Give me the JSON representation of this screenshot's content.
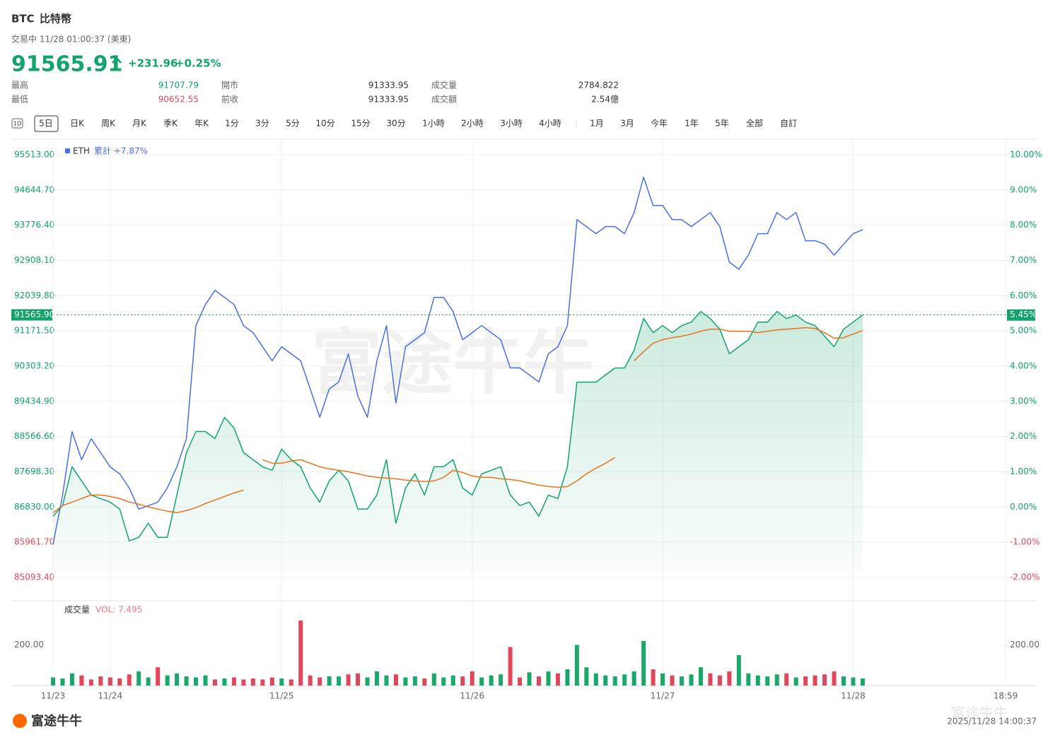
{
  "header": {
    "symbol": "BTC",
    "name": "比特幣",
    "status": "交易中 11/28 01:00:37 (美東)",
    "price": "91565.91",
    "change": "+231.96",
    "change_pct": "+0.25%",
    "stats": [
      {
        "label": "最高",
        "value": "91707.79"
      },
      {
        "label": "最低",
        "value": "90652.55"
      },
      {
        "label": "開市",
        "value": "91333.95"
      },
      {
        "label": "前收",
        "value": "91333.95"
      },
      {
        "label": "成交量",
        "value": "2784.822"
      },
      {
        "label": "成交額",
        "value": "2.54億"
      }
    ]
  },
  "tabs": {
    "icon": "1D",
    "items": [
      "5日",
      "日K",
      "周K",
      "月K",
      "季K",
      "年K",
      "1分",
      "3分",
      "5分",
      "10分",
      "15分",
      "30分",
      "1小時",
      "2小時",
      "3小時",
      "4小時"
    ],
    "ranges": [
      "1月",
      "3月",
      "今年",
      "1年",
      "5年",
      "全部",
      "自訂"
    ],
    "selected": "5日"
  },
  "footer": {
    "logo": "富途牛牛",
    "timestamp": "2025/11/28 14:00:37"
  },
  "chart_data": {
    "type": "line",
    "legend_text": "累計 +7.87%",
    "x": [
      0,
      0.05,
      0.1,
      0.15,
      0.2,
      0.25,
      0.3,
      0.35,
      0.4,
      0.45,
      0.5,
      0.55,
      0.6,
      0.65,
      0.7,
      0.75,
      0.8,
      0.85,
      0.9,
      0.95,
      1,
      1.05,
      1.1,
      1.15,
      1.2,
      1.25,
      1.3,
      1.35,
      1.4,
      1.45,
      1.5,
      1.55,
      1.6,
      1.65,
      1.7,
      1.75,
      1.8,
      1.85,
      1.9,
      1.95,
      2,
      2.05,
      2.1,
      2.15,
      2.2,
      2.25,
      2.3,
      2.35,
      2.4,
      2.45,
      2.5,
      2.55,
      2.6,
      2.65,
      2.7,
      2.75,
      2.8,
      2.85,
      2.9,
      2.95,
      3,
      3.05,
      3.1,
      3.15,
      3.2,
      3.25,
      3.3,
      3.35,
      3.4,
      3.45,
      3.5,
      3.55,
      3.6,
      3.65,
      3.7,
      3.75,
      3.8,
      3.85,
      3.9,
      3.95,
      4,
      4.05,
      4.1,
      4.15,
      4.2,
      4.25
    ],
    "xlim": [
      0,
      5
    ],
    "xticks": [
      {
        "value": 0,
        "label": "11/23"
      },
      {
        "value": 0.3,
        "label": "11/24"
      },
      {
        "value": 1.2,
        "label": "11/25"
      },
      {
        "value": 2.2,
        "label": "11/26"
      },
      {
        "value": 3.2,
        "label": "11/27"
      },
      {
        "value": 4.2,
        "label": "11/28"
      },
      {
        "value": 5,
        "label": "18:59"
      }
    ],
    "ylim": [
      84554,
      95878
    ],
    "yticks": [
      {
        "value": 95513,
        "label": "95513.00"
      },
      {
        "value": 94644.7,
        "label": "94644.70"
      },
      {
        "value": 93776.4,
        "label": "93776.40"
      },
      {
        "value": 92908.1,
        "label": "92908.10"
      },
      {
        "value": 92039.8,
        "label": "92039.80"
      },
      {
        "value": 91171.5,
        "label": "91171.50"
      },
      {
        "value": 90303.2,
        "label": "90303.20"
      },
      {
        "value": 89434.9,
        "label": "89434.90"
      },
      {
        "value": 88566.6,
        "label": "88566.60"
      },
      {
        "value": 87698.3,
        "label": "87698.30"
      },
      {
        "value": 86830,
        "label": "86830.00"
      },
      {
        "value": 85961.7,
        "label": "85961.70"
      },
      {
        "value": 85093.4,
        "label": "85093.40"
      }
    ],
    "y2lim": [
      -2.62,
      10.42
    ],
    "y2ticks": [
      {
        "value": 10,
        "label": "10.00%"
      },
      {
        "value": 9,
        "label": "9.00%"
      },
      {
        "value": 8,
        "label": "8.00%"
      },
      {
        "value": 7,
        "label": "7.00%"
      },
      {
        "value": 6,
        "label": "6.00%"
      },
      {
        "value": 5,
        "label": "5.00%"
      },
      {
        "value": 4,
        "label": "4.00%"
      },
      {
        "value": 3,
        "label": "3.00%"
      },
      {
        "value": 2,
        "label": "2.00%"
      },
      {
        "value": 1,
        "label": "1.00%"
      },
      {
        "value": 0,
        "label": "0.00%"
      },
      {
        "value": -1,
        "label": "-1.00%"
      },
      {
        "value": -2,
        "label": "-2.00%"
      }
    ],
    "grid": true,
    "series": [
      {
        "name": "ETH",
        "color": "#4a6fe3",
        "axis": "y2",
        "values": [
          -1.06,
          0.34,
          2.14,
          1.34,
          1.94,
          1.54,
          1.14,
          0.94,
          0.54,
          -0.06,
          0.04,
          0.14,
          0.54,
          1.14,
          1.94,
          5.15,
          5.75,
          6.15,
          5.95,
          5.75,
          5.15,
          4.95,
          4.55,
          4.15,
          4.55,
          4.35,
          4.15,
          3.35,
          2.55,
          3.35,
          3.55,
          4.35,
          3.15,
          2.55,
          4.15,
          5.15,
          2.95,
          4.55,
          4.75,
          4.95,
          5.95,
          5.95,
          5.55,
          4.75,
          4.95,
          5.15,
          4.95,
          4.75,
          3.95,
          3.95,
          3.75,
          3.55,
          4.35,
          4.55,
          5.15,
          8.16,
          7.96,
          7.76,
          7.96,
          7.96,
          7.76,
          8.36,
          9.36,
          8.56,
          8.56,
          8.16,
          8.16,
          7.96,
          8.16,
          8.36,
          7.96,
          6.95,
          6.75,
          7.15,
          7.76,
          7.76,
          8.36,
          8.16,
          8.36,
          7.56,
          7.56,
          7.46,
          7.15,
          7.46,
          7.76,
          7.87
        ]
      },
      {
        "color": "#13a36b",
        "area": true,
        "values": [
          86604,
          86865,
          87822,
          87474,
          87126,
          87039,
          86952,
          86778,
          85995,
          86082,
          86430,
          86082,
          86082,
          87126,
          88170,
          88692,
          88692,
          88518,
          89040,
          88779,
          88170,
          87996,
          87822,
          87735,
          88257,
          87996,
          87822,
          87300,
          86952,
          87474,
          87735,
          87474,
          86778,
          86778,
          87126,
          87996,
          86430,
          87300,
          87648,
          87126,
          87822,
          87822,
          87996,
          87300,
          87126,
          87648,
          87735,
          87822,
          87126,
          86865,
          86952,
          86604,
          87126,
          87039,
          87822,
          89910,
          89910,
          89910,
          90084,
          90258,
          90258,
          90693,
          91476,
          91128,
          91302,
          91128,
          91302,
          91389,
          91650,
          91476,
          91215,
          90606,
          90780,
          90954,
          91389,
          91389,
          91650,
          91476,
          91563,
          91389,
          91302,
          91041,
          90780,
          91215,
          91389,
          91565.9
        ]
      },
      {
        "color": "#e8731a",
        "values": [
          86691,
          86865,
          86952,
          87039,
          87126,
          87126,
          87091,
          87039,
          86952,
          86900,
          86830,
          86778,
          86726,
          86691,
          86743,
          86813,
          86917,
          87004,
          87091,
          87178,
          87248,
          null,
          87996,
          87909,
          87909,
          87961,
          87996,
          87909,
          87822,
          87770,
          87735,
          87700,
          87648,
          87596,
          87561,
          87543,
          87526,
          87491,
          87474,
          87456,
          87474,
          87561,
          87735,
          87683,
          87596,
          87561,
          87561,
          87526,
          87509,
          87474,
          87422,
          87369,
          87335,
          87317,
          87335,
          87474,
          87648,
          87787,
          87909,
          88048,
          null,
          90432,
          90658,
          90867,
          90954,
          91006,
          91041,
          91093,
          91163,
          91215,
          91215,
          91163,
          91163,
          91163,
          91128,
          91163,
          91197,
          91215,
          91232,
          91250,
          91232,
          91128,
          90989,
          91006,
          91093,
          91180
        ]
      }
    ],
    "last": {
      "value": 91565.9,
      "label": "91565.90",
      "pct": 5.45,
      "pct_label": "5.45%"
    },
    "volume": {
      "label": "成交量",
      "value_label": "VOL: 7.495",
      "up_color": "#1aa86a",
      "down_color": "#e0475a",
      "ylim": [
        0,
        400
      ],
      "yticks": [
        {
          "value": 200,
          "label": "200.00"
        }
      ],
      "values": [
        40,
        35,
        60,
        50,
        30,
        45,
        40,
        35,
        55,
        70,
        40,
        90,
        50,
        60,
        45,
        40,
        50,
        30,
        35,
        40,
        30,
        35,
        30,
        40,
        35,
        30,
        320,
        50,
        40,
        45,
        45,
        55,
        60,
        40,
        70,
        50,
        55,
        40,
        45,
        35,
        60,
        40,
        50,
        45,
        70,
        40,
        50,
        55,
        190,
        40,
        65,
        45,
        70,
        60,
        80,
        200,
        90,
        60,
        50,
        45,
        55,
        70,
        220,
        80,
        60,
        50,
        45,
        55,
        90,
        60,
        50,
        70,
        150,
        60,
        50,
        45,
        55,
        60,
        40,
        45,
        50,
        55,
        70,
        45,
        40,
        35
      ]
    }
  }
}
